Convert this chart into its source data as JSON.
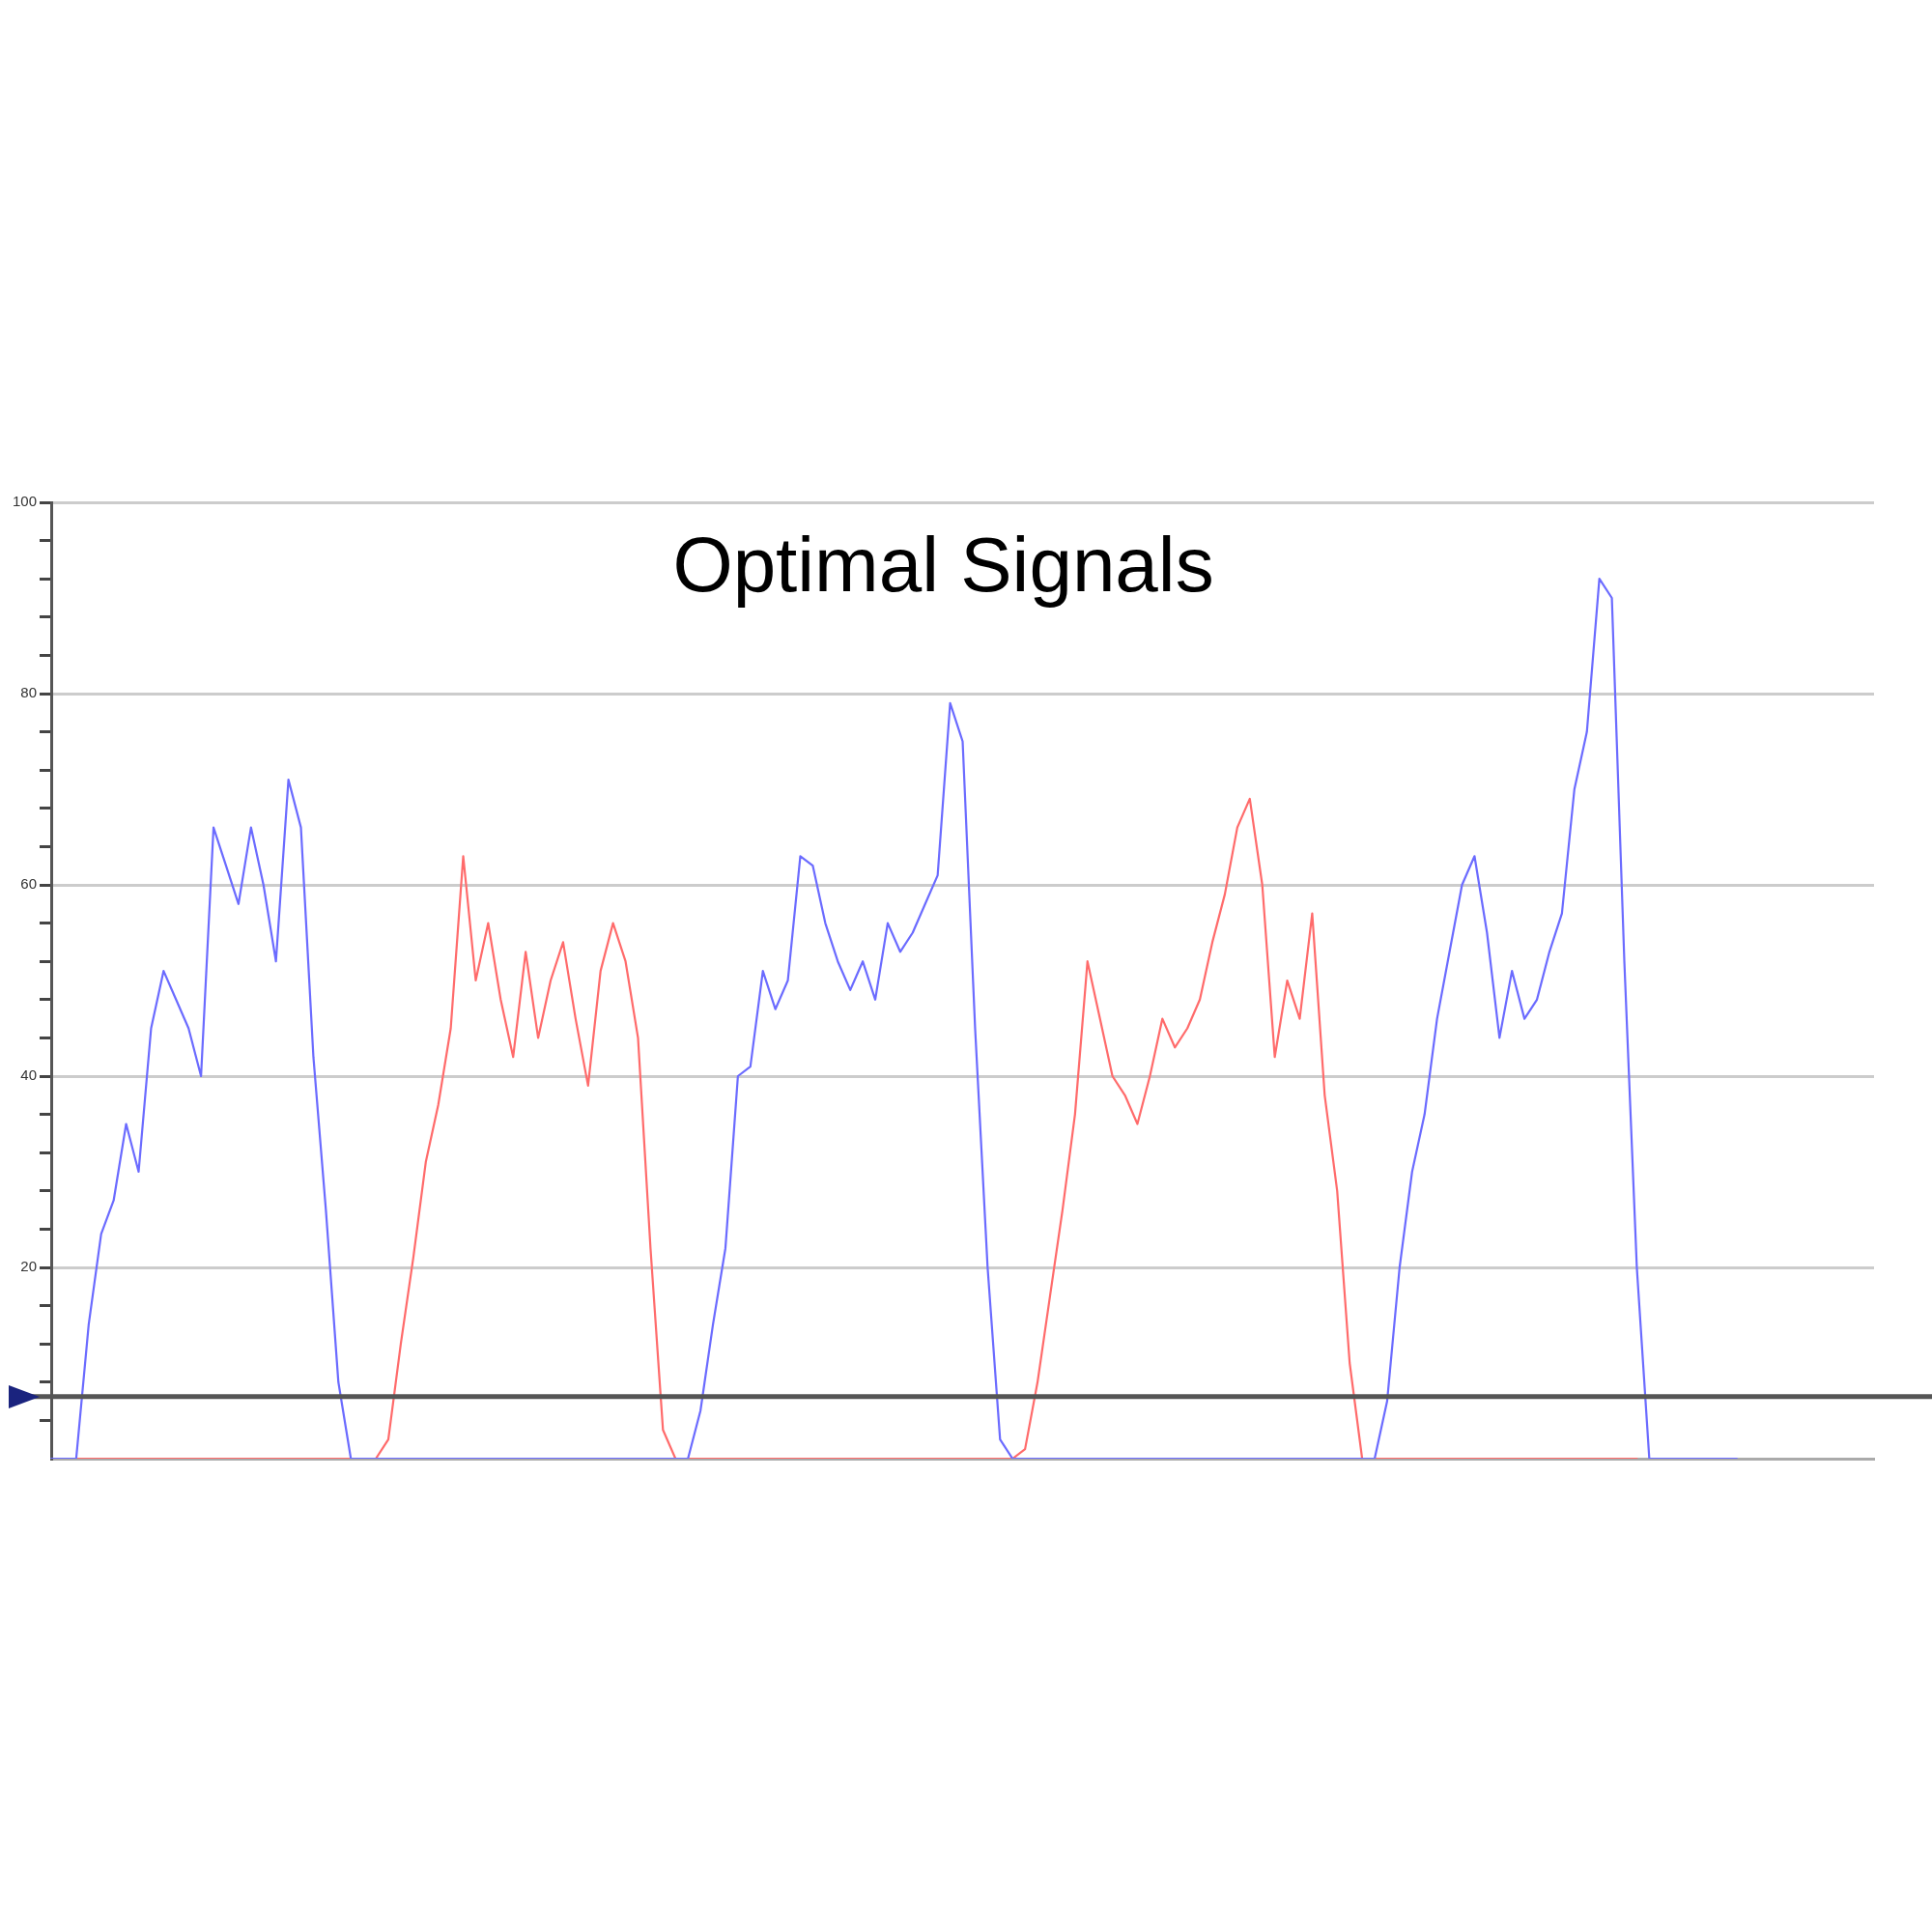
{
  "chart_data": {
    "type": "line",
    "title": "Optimal Signals",
    "categories": [
      null,
      null,
      null,
      null,
      null,
      null,
      null,
      null,
      null,
      null,
      null,
      null,
      null,
      null,
      null,
      null,
      null,
      null,
      null,
      null,
      null,
      null,
      null,
      null,
      null,
      null,
      null,
      null,
      null,
      null,
      null,
      null,
      null,
      null,
      null,
      null,
      null,
      null,
      null,
      null,
      null,
      null,
      null,
      null,
      null,
      null,
      null,
      null,
      null,
      null,
      null,
      null,
      null,
      null,
      null,
      null,
      null,
      null,
      null,
      null,
      null,
      null,
      null,
      null,
      null,
      null,
      null,
      null,
      null,
      null,
      null,
      null,
      null,
      null,
      null,
      null,
      null,
      null,
      null,
      null,
      null,
      null,
      null,
      null,
      null,
      null,
      null,
      null,
      null,
      null,
      null,
      null,
      null,
      null,
      null,
      null,
      null,
      null,
      null,
      null,
      null,
      null,
      null,
      null,
      null,
      null,
      null,
      null,
      null,
      null,
      null,
      null,
      null,
      null,
      null,
      null,
      null,
      null,
      null,
      null,
      null,
      null,
      null,
      null,
      null,
      null,
      null,
      null,
      null,
      null,
      null,
      null,
      null,
      null,
      null,
      null,
      null,
      null,
      null,
      null,
      null,
      null,
      null,
      null,
      null,
      null,
      null
    ],
    "series": [
      {
        "color": "#6b6bff",
        "values": [
          0,
          0,
          0,
          14,
          23.5,
          27,
          35,
          30,
          45,
          51,
          48,
          45,
          40,
          66,
          62,
          58,
          66,
          60,
          52,
          71,
          66,
          42,
          26,
          8,
          0,
          0,
          0,
          0,
          0,
          0,
          0,
          0,
          0,
          0,
          0,
          0,
          0,
          0,
          0,
          0,
          0,
          0,
          0,
          0,
          0,
          0,
          0,
          0,
          0,
          0,
          0,
          0,
          5,
          14,
          22,
          40,
          41,
          51,
          47,
          50,
          63,
          62,
          56,
          52,
          49,
          52,
          48,
          56,
          53,
          55,
          58,
          61,
          79,
          75,
          45,
          20,
          2,
          0,
          0,
          0,
          0,
          0,
          0,
          0,
          0,
          0,
          0,
          0,
          0,
          0,
          0,
          0,
          0,
          0,
          0,
          0,
          0,
          0,
          0,
          0,
          0,
          0,
          0,
          0,
          0,
          0,
          0,
          6,
          20,
          30,
          36,
          46,
          53,
          60,
          63,
          55,
          44,
          51,
          46,
          48,
          53,
          57,
          70,
          76,
          92,
          90,
          52,
          20,
          0,
          0,
          0,
          0,
          0,
          0,
          0,
          0,
          null,
          null,
          null,
          null,
          null,
          null,
          null,
          null,
          null,
          null,
          null
        ]
      },
      {
        "color": "#ff6b6b",
        "values": [
          null,
          null,
          0,
          0,
          0,
          0,
          0,
          0,
          0,
          0,
          0,
          0,
          0,
          0,
          0,
          0,
          0,
          0,
          0,
          0,
          0,
          0,
          0,
          0,
          0,
          0,
          0,
          2,
          12,
          21,
          31,
          37,
          45,
          63,
          50,
          56,
          48,
          42,
          53,
          44,
          50,
          54,
          46,
          39,
          51,
          56,
          52,
          44,
          22,
          3,
          0,
          0,
          0,
          0,
          0,
          0,
          0,
          0,
          0,
          0,
          0,
          0,
          0,
          0,
          0,
          0,
          0,
          0,
          0,
          0,
          0,
          0,
          0,
          0,
          0,
          0,
          0,
          0,
          1,
          8,
          17,
          26,
          36,
          52,
          46,
          40,
          38,
          35,
          40,
          46,
          43,
          45,
          48,
          54,
          59,
          66,
          69,
          60,
          42,
          50,
          46,
          57,
          38,
          28,
          10,
          0,
          0,
          0,
          0,
          0,
          0,
          0,
          0,
          0,
          0,
          0,
          0,
          0,
          0,
          0,
          0,
          0,
          0,
          0,
          0,
          0,
          0,
          0,
          null,
          null,
          null,
          null,
          null,
          null,
          null,
          null,
          null,
          null,
          null,
          null,
          null,
          null,
          null,
          null,
          null,
          null,
          null
        ]
      }
    ],
    "ylim": [
      0,
      100
    ],
    "yticks": [
      {
        "value": 4,
        "label": null
      },
      {
        "value": 8,
        "label": null
      },
      {
        "value": 12,
        "label": null
      },
      {
        "value": 16,
        "label": null
      },
      20,
      {
        "value": 24,
        "label": null
      },
      {
        "value": 28,
        "label": null
      },
      {
        "value": 32,
        "label": null
      },
      {
        "value": 36,
        "label": null
      },
      40,
      {
        "value": 44,
        "label": null
      },
      {
        "value": 48,
        "label": null
      },
      {
        "value": 52,
        "label": null
      },
      {
        "value": 56,
        "label": null
      },
      60,
      {
        "value": 64,
        "label": null
      },
      {
        "value": 68,
        "label": null
      },
      {
        "value": 72,
        "label": null
      },
      {
        "value": 76,
        "label": null
      },
      80,
      {
        "value": 84,
        "label": null
      },
      {
        "value": 88,
        "label": null
      },
      {
        "value": 92,
        "label": null
      },
      {
        "value": 96,
        "label": null
      },
      100
    ],
    "ref_lines": [
      {
        "axis": "y",
        "value": 6.5,
        "color": "#555555"
      }
    ],
    "grid": "y",
    "legend": false,
    "marker": "none",
    "line_style": "solid",
    "tick_labels": "y"
  }
}
